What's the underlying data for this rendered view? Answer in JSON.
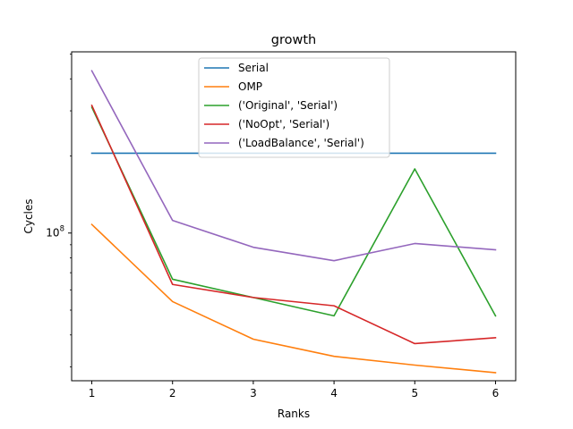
{
  "chart_data": {
    "type": "line",
    "title": "growth",
    "xlabel": "Ranks",
    "ylabel": "Cycles",
    "x": [
      1,
      2,
      3,
      4,
      5,
      6
    ],
    "xticks": [
      "1",
      "2",
      "3",
      "4",
      "5",
      "6"
    ],
    "yscale": "log",
    "ylim": [
      26500000,
      510000000
    ],
    "xlim": [
      0.75,
      6.25
    ],
    "yticks": [
      {
        "value": 100000000,
        "base": "10",
        "exp": "8"
      }
    ],
    "grid": false,
    "legend_position": "top-center",
    "series": [
      {
        "name": "Serial",
        "color": "#1f77b4",
        "values": [
          205000000,
          205000000,
          205000000,
          205000000,
          205000000,
          205000000
        ]
      },
      {
        "name": "OMP",
        "color": "#ff7f0e",
        "values": [
          108000000,
          54000000,
          38500000,
          33000000,
          30500000,
          28500000
        ]
      },
      {
        "name": "('Original', 'Serial')",
        "color": "#2ca02c",
        "values": [
          310000000,
          66000000,
          56000000,
          47500000,
          178000000,
          47500000
        ]
      },
      {
        "name": "('NoOpt', 'Serial')",
        "color": "#d62728",
        "values": [
          315000000,
          63000000,
          56000000,
          52000000,
          37000000,
          39000000
        ]
      },
      {
        "name": "('LoadBalance', 'Serial')",
        "color": "#9467bd",
        "values": [
          430000000,
          112000000,
          88000000,
          78000000,
          91000000,
          86000000
        ]
      }
    ]
  }
}
